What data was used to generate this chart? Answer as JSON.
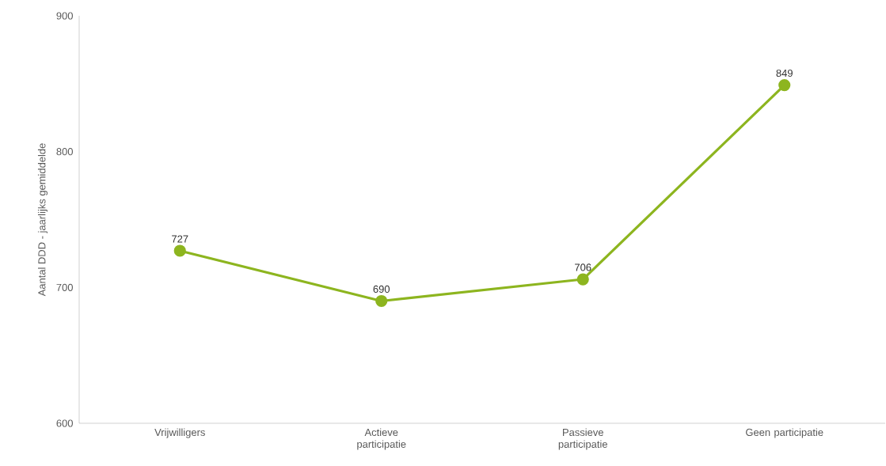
{
  "chart_data": {
    "type": "line",
    "ylabel": "Aantal DDD - jaarlijks gemiddelde",
    "categories": [
      "Vrijwilligers",
      "Actieve participatie",
      "Passieve participatie",
      "Geen participatie"
    ],
    "values": [
      727,
      690,
      706,
      849
    ],
    "color": "#8db51f",
    "data_labels": true,
    "marker": "circle",
    "line_style": "solid",
    "ylim": [
      600,
      900
    ],
    "yticks": [
      600,
      700,
      800,
      900
    ],
    "grid": false
  }
}
